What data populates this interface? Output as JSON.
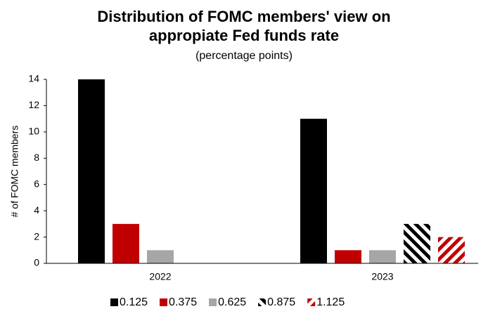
{
  "chart_data": {
    "type": "bar",
    "title": "Distribution of FOMC members' view on appropiate Fed funds rate",
    "subtitle": "(percentage points)",
    "y_label": "# of FOMC members",
    "categories": [
      "2022",
      "2023"
    ],
    "series": [
      {
        "name": "0.125",
        "color": "#000000",
        "values": [
          14,
          11
        ]
      },
      {
        "name": "0.375",
        "color": "#c00000",
        "values": [
          3,
          1
        ]
      },
      {
        "name": "0.625",
        "color": "#a6a6a6",
        "values": [
          1,
          1
        ]
      },
      {
        "name": "0.875",
        "color": "#000000",
        "hatch": "back-diagonal",
        "values": [
          0,
          3
        ]
      },
      {
        "name": "1.125",
        "color": "#c00000",
        "hatch": "forward-diagonal",
        "values": [
          0,
          2
        ]
      }
    ],
    "ylim": [
      0,
      14
    ],
    "yticks": [
      0,
      2,
      4,
      6,
      8,
      10,
      12,
      14
    ],
    "grid": false,
    "legend": "bottom"
  }
}
